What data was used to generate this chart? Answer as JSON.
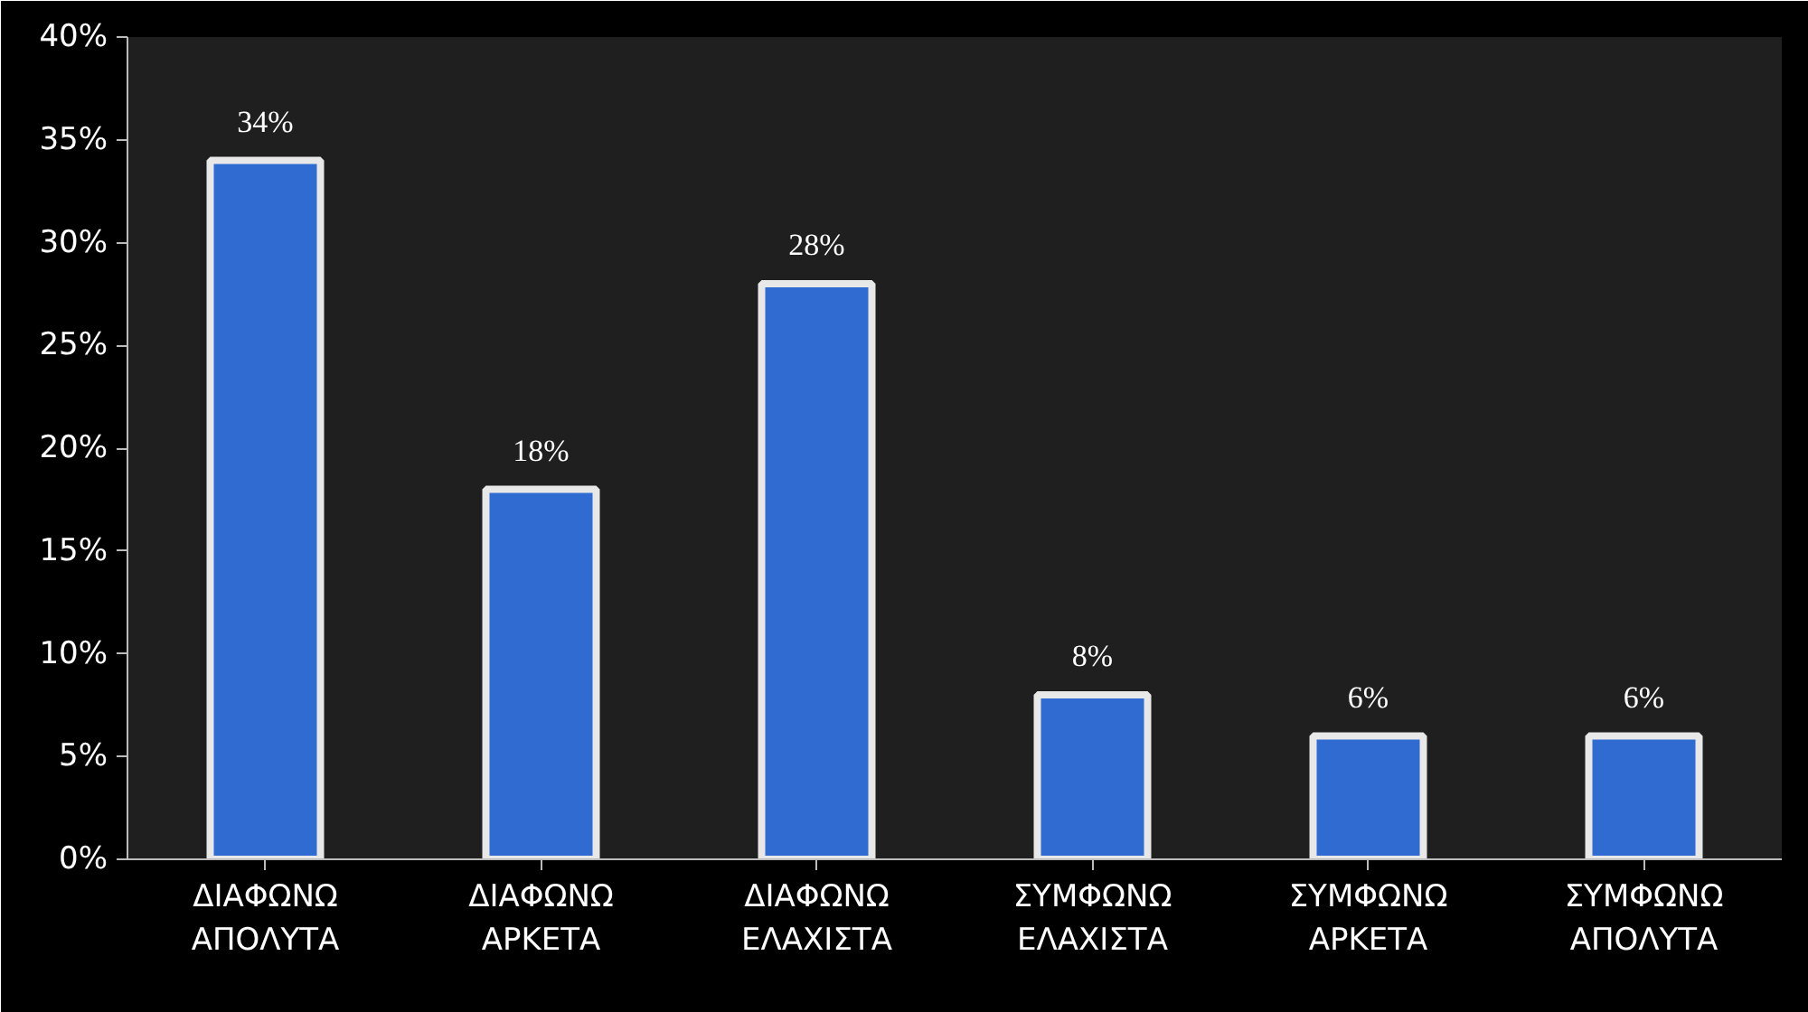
{
  "chart_data": {
    "type": "bar",
    "categories": [
      "ΔΙΑΦΩΝΩ ΑΠΟΛΥΤΑ",
      "ΔΙΑΦΩΝΩ ΑΡΚΕΤΑ",
      "ΔΙΑΦΩΝΩ ΕΛΑΧΙΣΤΑ",
      "ΣΥΜΦΩΝΩ ΕΛΑΧΙΣΤΑ",
      "ΣΥΜΦΩΝΩ ΑΡΚΕΤΑ",
      "ΣΥΜΦΩΝΩ ΑΠΟΛΥΤΑ"
    ],
    "values": [
      34,
      18,
      28,
      8,
      6,
      6
    ],
    "value_labels": [
      "34%",
      "18%",
      "28%",
      "8%",
      "6%",
      "6%"
    ],
    "color": "#2f6bd0",
    "ylim": [
      0,
      40
    ],
    "yticks": [
      {
        "value": 0,
        "label": "0%"
      },
      {
        "value": 5,
        "label": "5%"
      },
      {
        "value": 10,
        "label": "10%"
      },
      {
        "value": 15,
        "label": "15%"
      },
      {
        "value": 20,
        "label": "20%"
      },
      {
        "value": 25,
        "label": "25%"
      },
      {
        "value": 30,
        "label": "30%"
      },
      {
        "value": 35,
        "label": "35%"
      },
      {
        "value": 40,
        "label": "40%"
      }
    ],
    "grid": false
  }
}
